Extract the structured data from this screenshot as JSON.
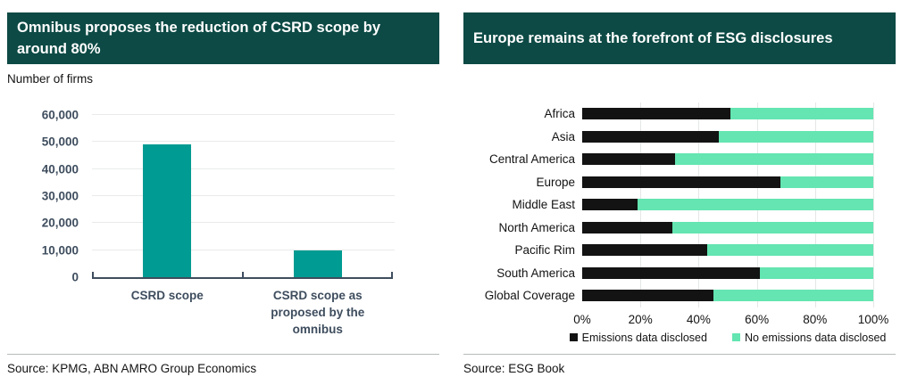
{
  "colors": {
    "title_bar_bg": "#0d4a45",
    "title_text": "#ffffff",
    "teal_bar": "#009b92",
    "black_bar": "#131313",
    "mint_bar": "#64e5b1",
    "axis_text": "#3e4d5e",
    "gridline": "#e9eaea",
    "divider": "#b7babc"
  },
  "left_panel": {
    "source": "Source: KPMG, ABN AMRO Group Economics"
  },
  "right_panel": {
    "source": "Source: ESG Book"
  },
  "chart_data": [
    {
      "type": "bar",
      "title": "Omnibus proposes the reduction of CSRD scope by around 80%",
      "ylabel": "Number of firms",
      "categories": [
        "CSRD scope",
        "CSRD scope as proposed by the omnibus"
      ],
      "values": [
        49200,
        9800
      ],
      "ylim": [
        0,
        60000
      ],
      "yticks": [
        "0",
        "10,000",
        "20,000",
        "30,000",
        "40,000",
        "50,000",
        "60,000"
      ],
      "grid": true,
      "legend_position": "none",
      "bar_color": "#009b92"
    },
    {
      "type": "stacked-horizontal-bar",
      "title": "Europe remains at the forefront of ESG disclosures",
      "categories": [
        "Africa",
        "Asia",
        "Central America",
        "Europe",
        "Middle East",
        "North America",
        "Pacific Rim",
        "South America",
        "Global Coverage"
      ],
      "series": [
        {
          "name": "Emissions data disclosed",
          "color": "#131313",
          "values": [
            51,
            47,
            32,
            68,
            19,
            31,
            43,
            61,
            45
          ]
        },
        {
          "name": "No emissions data disclosed",
          "color": "#64e5b1",
          "values": [
            49,
            53,
            68,
            32,
            81,
            69,
            57,
            39,
            55
          ]
        }
      ],
      "xlim": [
        0,
        100
      ],
      "xticks": [
        "0%",
        "20%",
        "40%",
        "60%",
        "80%",
        "100%"
      ],
      "grid": true,
      "legend_position": "bottom"
    }
  ]
}
